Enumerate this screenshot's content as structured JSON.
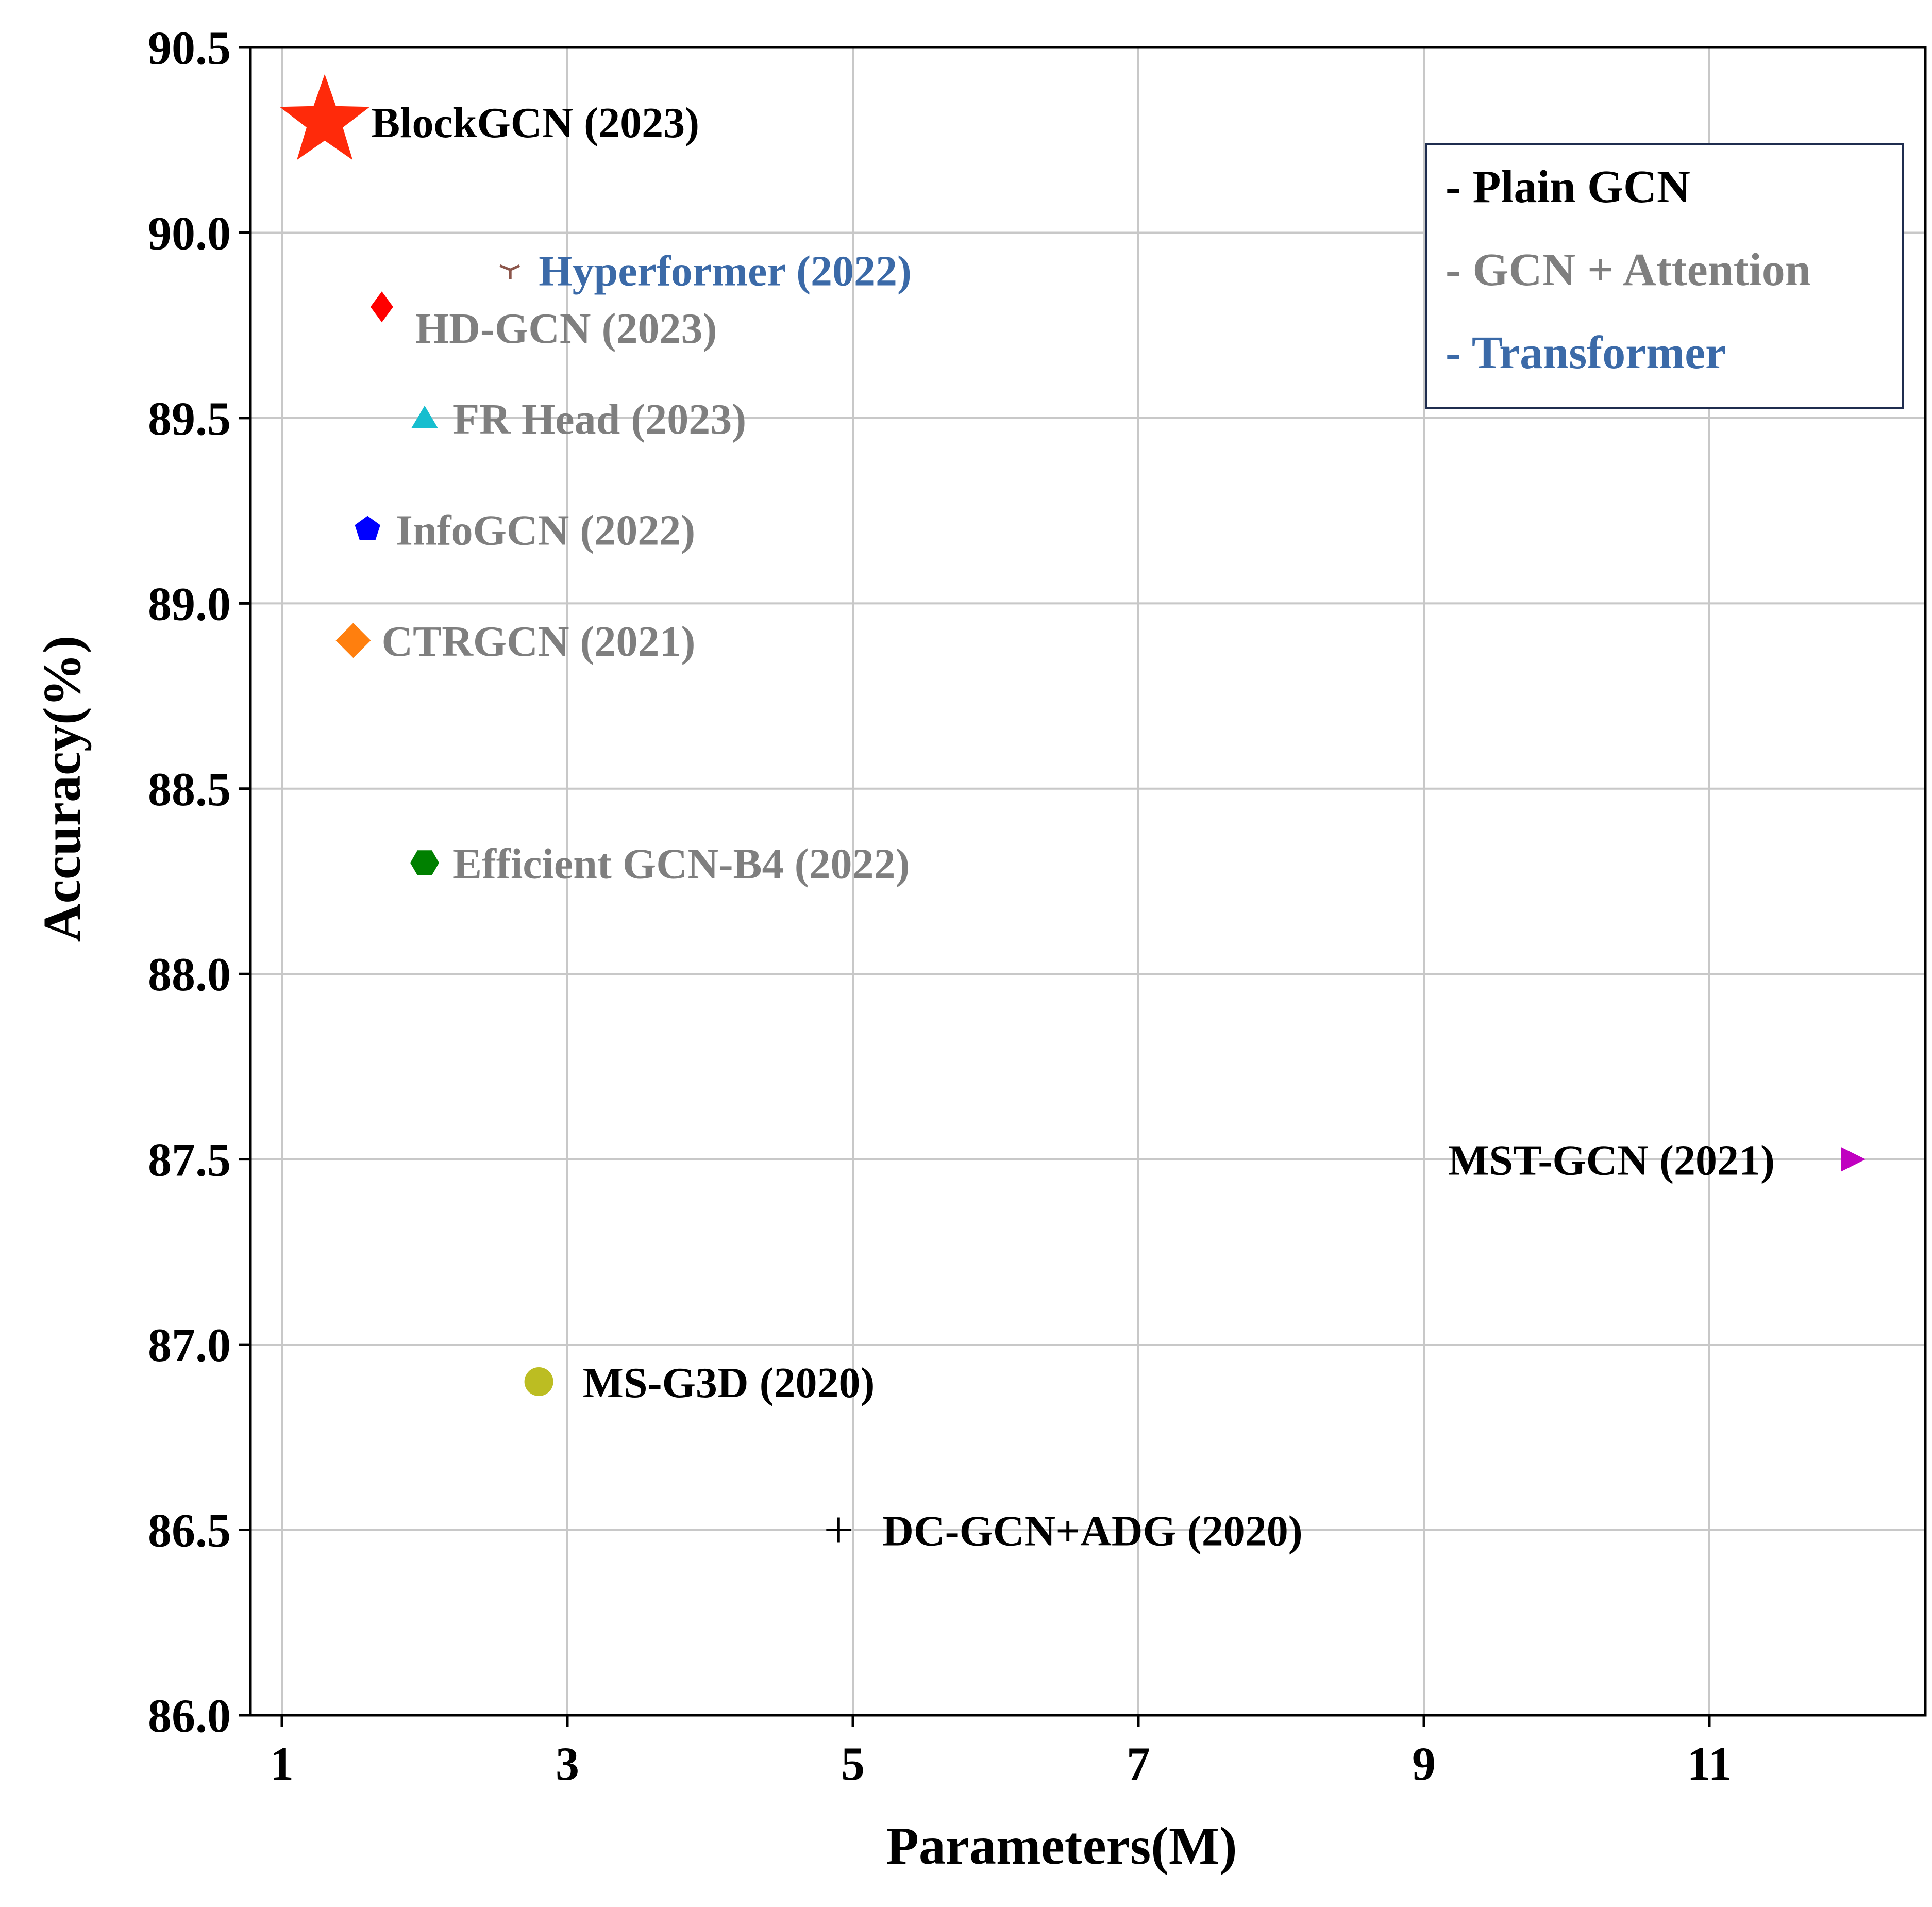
{
  "chart_data": {
    "type": "scatter",
    "title": "",
    "xlabel": "Parameters(M)",
    "ylabel": "Accuracy(%)",
    "xlim": [
      0.8,
      12.6
    ],
    "ylim": [
      86.0,
      90.5
    ],
    "xticks": [
      1,
      3,
      5,
      7,
      9,
      11
    ],
    "xtick_labels": [
      "1",
      "3",
      "5",
      "7",
      "9",
      "11"
    ],
    "yticks": [
      86.0,
      86.5,
      87.0,
      87.5,
      88.0,
      88.5,
      89.0,
      89.5,
      90.0,
      90.5
    ],
    "ytick_labels": [
      "86.0",
      "86.5",
      "87.0",
      "87.5",
      "88.0",
      "88.5",
      "89.0",
      "89.5",
      "90.0",
      "90.5"
    ],
    "grid": true,
    "legend_position": "top-right",
    "legend": [
      {
        "label": "- Plain GCN",
        "color": "#000000"
      },
      {
        "label": "- GCN + Attention",
        "color": "#7f7f7f"
      },
      {
        "label": "- Transformer",
        "color": "#3b6aa8"
      }
    ],
    "points": [
      {
        "name": "BlockGCN (2023)",
        "x": 1.3,
        "y": 90.3,
        "marker": "star",
        "color": "#ff2a0a",
        "label_color": "#000000",
        "label_side": "right"
      },
      {
        "name": "Hyperformer (2022)",
        "x": 2.6,
        "y": 89.9,
        "marker": "tri",
        "color": "#8c564b",
        "label_color": "#3b6aa8",
        "label_side": "right"
      },
      {
        "name": "HD-GCN (2023)",
        "x": 1.7,
        "y": 89.8,
        "marker": "thin-diamond",
        "color": "#ff0000",
        "label_color": "#7f7f7f",
        "label_side": "right-below"
      },
      {
        "name": "FR Head (2023)",
        "x": 2.0,
        "y": 89.5,
        "marker": "triangle",
        "color": "#17becf",
        "label_color": "#7f7f7f",
        "label_side": "right"
      },
      {
        "name": "InfoGCN (2022)",
        "x": 1.6,
        "y": 89.2,
        "marker": "pentagon",
        "color": "#0000ff",
        "label_color": "#7f7f7f",
        "label_side": "right"
      },
      {
        "name": "CTRGCN (2021)",
        "x": 1.5,
        "y": 88.9,
        "marker": "diamond",
        "color": "#ff7f0e",
        "label_color": "#7f7f7f",
        "label_side": "right"
      },
      {
        "name": "Efficient GCN-B4 (2022)",
        "x": 2.0,
        "y": 88.3,
        "marker": "hexagon",
        "color": "#008000",
        "label_color": "#7f7f7f",
        "label_side": "right"
      },
      {
        "name": "MST-GCN (2021)",
        "x": 12.0,
        "y": 87.5,
        "marker": "triangle-right",
        "color": "#c000c0",
        "label_color": "#000000",
        "label_side": "left"
      },
      {
        "name": "MS-G3D (2020)",
        "x": 2.8,
        "y": 86.9,
        "marker": "circle",
        "color": "#bcbd22",
        "label_color": "#000000",
        "label_side": "right"
      },
      {
        "name": "DC-GCN+ADG (2020)",
        "x": 4.9,
        "y": 86.5,
        "marker": "plus",
        "color": "#000000",
        "label_color": "#000000",
        "label_side": "right"
      }
    ]
  }
}
